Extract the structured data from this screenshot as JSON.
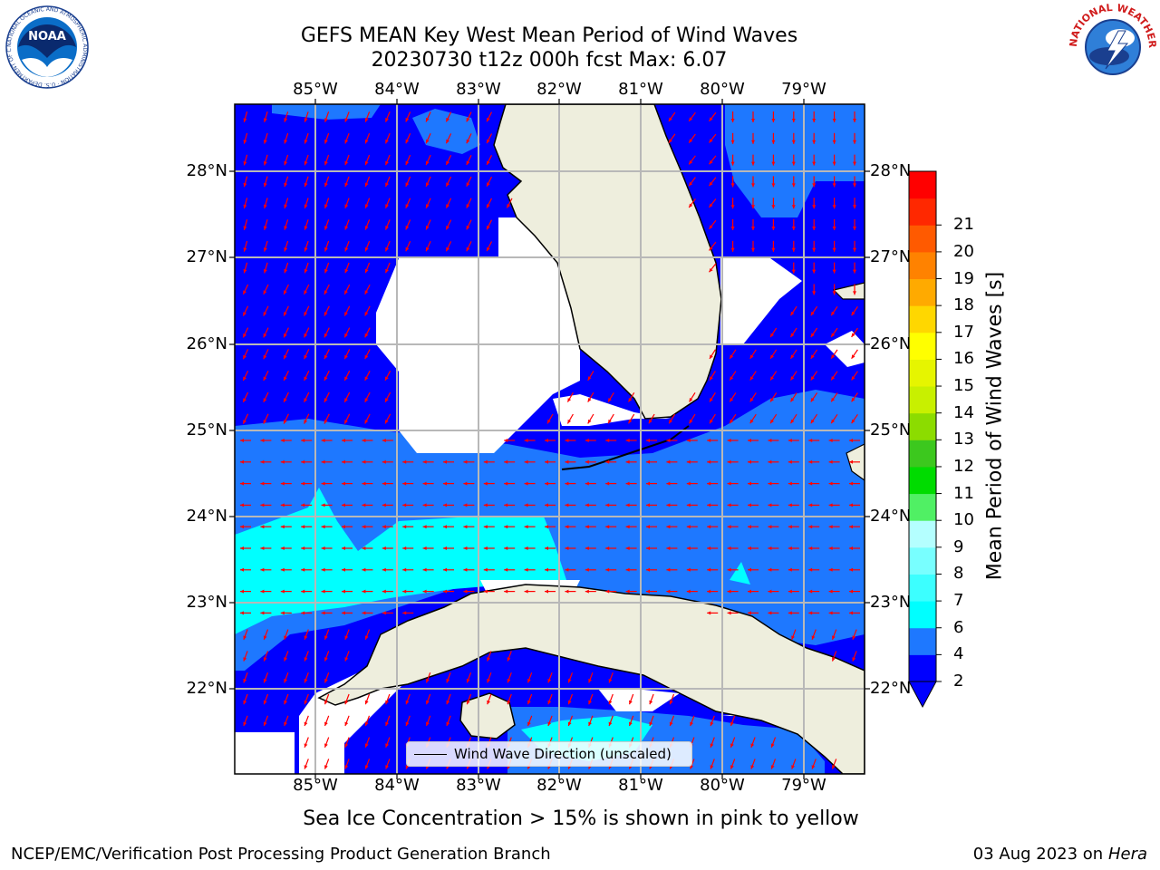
{
  "title_line1": "GEFS MEAN Key West Mean Period of Wind Waves",
  "title_line2": "20230730 t12z 000h fcst   Max: 6.07",
  "lon_ticks": [
    "85°W",
    "84°W",
    "83°W",
    "82°W",
    "81°W",
    "80°W",
    "79°W"
  ],
  "lat_ticks": [
    "28°N",
    "27°N",
    "26°N",
    "25°N",
    "24°N",
    "23°N",
    "22°N"
  ],
  "legend_label": "Wind Wave Direction (unscaled)",
  "colorbar": {
    "label": "Mean Period of Wind Waves [s]",
    "ticks": [
      "2",
      "4",
      "6",
      "7",
      "8",
      "9",
      "10",
      "11",
      "12",
      "13",
      "14",
      "15",
      "16",
      "17",
      "18",
      "19",
      "20",
      "21"
    ],
    "colors": [
      "#0000ff",
      "#1e78ff",
      "#00ffff",
      "#3cffff",
      "#78ffff",
      "#b4ffff",
      "#50f064",
      "#00dc00",
      "#3cc81e",
      "#8cdc00",
      "#c8f000",
      "#e6f500",
      "#ffff00",
      "#ffd700",
      "#ffaa00",
      "#ff8200",
      "#ff5a00",
      "#ff2800",
      "#ff0000"
    ]
  },
  "note": "Sea Ice Concentration > 15% is shown in pink to yellow",
  "footer_left": "NCEP/EMC/Verification Post Processing Product Generation Branch",
  "footer_date": "03 Aug 2023 on",
  "footer_machine": "Hera",
  "logos": {
    "noaa": {
      "text": "NOAA",
      "ring_text": "NATIONAL OCEANIC AND ATMOSPHERIC ADMINISTRATION · U.S. DEPARTMENT OF COMMERCE"
    },
    "nws": {
      "ring_text": "NATIONAL WEATHER SERVICE"
    }
  },
  "colors": {
    "land": "#eeeedd",
    "ocean_low": "#0000ff",
    "ocean_mid": "#1e78ff",
    "ocean_high": "#00ffff",
    "arrow": "#ff0000",
    "grid": "#b8b8b8"
  }
}
